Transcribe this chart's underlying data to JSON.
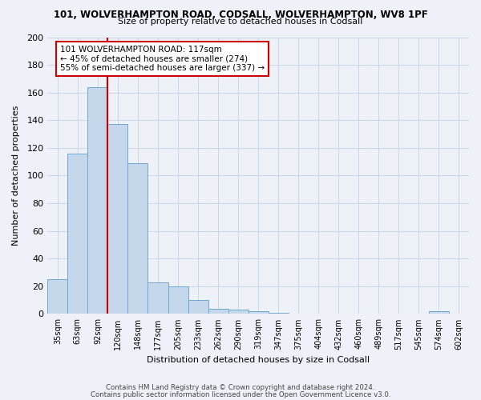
{
  "title_line1": "101, WOLVERHAMPTON ROAD, CODSALL, WOLVERHAMPTON, WV8 1PF",
  "title_line2": "Size of property relative to detached houses in Codsall",
  "xlabel": "Distribution of detached houses by size in Codsall",
  "ylabel": "Number of detached properties",
  "bin_labels": [
    "35sqm",
    "63sqm",
    "92sqm",
    "120sqm",
    "148sqm",
    "177sqm",
    "205sqm",
    "233sqm",
    "262sqm",
    "290sqm",
    "319sqm",
    "347sqm",
    "375sqm",
    "404sqm",
    "432sqm",
    "460sqm",
    "489sqm",
    "517sqm",
    "545sqm",
    "574sqm",
    "602sqm"
  ],
  "bar_values": [
    25,
    116,
    164,
    137,
    109,
    23,
    20,
    10,
    4,
    3,
    2,
    1,
    0,
    0,
    0,
    0,
    0,
    0,
    0,
    2,
    0
  ],
  "bar_color": "#c5d8eb",
  "bar_edge_color": "#6fa8cc",
  "vline_color": "#cc0000",
  "vline_pos": 3.0,
  "annotation_text": "101 WOLVERHAMPTON ROAD: 117sqm\n← 45% of detached houses are smaller (274)\n55% of semi-detached houses are larger (337) →",
  "annotation_box_color": "#ffffff",
  "annotation_box_edge_color": "#cc0000",
  "ylim": [
    0,
    200
  ],
  "yticks": [
    0,
    20,
    40,
    60,
    80,
    100,
    120,
    140,
    160,
    180,
    200
  ],
  "grid_color": "#d0d8e8",
  "bg_color": "#eef2f8",
  "footer_line1": "Contains HM Land Registry data © Crown copyright and database right 2024.",
  "footer_line2": "Contains public sector information licensed under the Open Government Licence v3.0."
}
